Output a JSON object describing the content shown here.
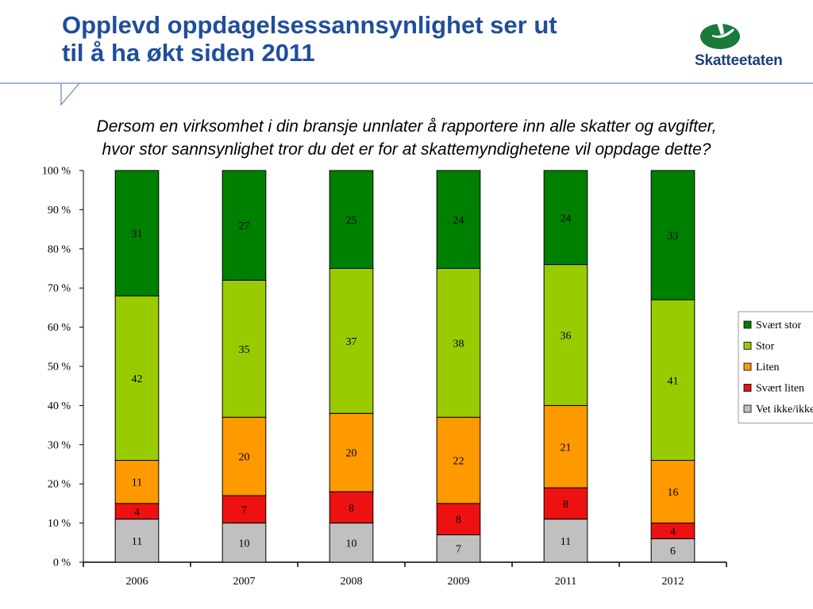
{
  "slide": {
    "title_line1": "Opplevd oppdagelsessannsynlighet ser ut",
    "title_line2": "til å ha økt siden 2011",
    "question_line1": "Dersom en virksomhet i din bransje unnlater å rapportere inn alle skatter og avgifter,",
    "question_line2": "hvor stor sannsynlighet tror du det er for at skattemyndighetene vil oppdage dette?",
    "logo_text": "Skatteetaten",
    "logo_color": "#1a7a3c"
  },
  "chart_data": {
    "type": "bar",
    "stacked": true,
    "percent": true,
    "categories": [
      "2006",
      "2007",
      "2008",
      "2009",
      "2011",
      "2012"
    ],
    "ylim": [
      0,
      100
    ],
    "yticks": [
      "0 %",
      "10 %",
      "20 %",
      "30 %",
      "40 %",
      "50 %",
      "60 %",
      "70 %",
      "80 %",
      "90 %",
      "100 %"
    ],
    "legend_position": "right",
    "series": [
      {
        "name": "Vet ikke/ikke svar",
        "color": "#c0c0c0",
        "values": [
          11,
          10,
          10,
          7,
          11,
          6
        ]
      },
      {
        "name": "Svært liten",
        "color": "#ee1111",
        "values": [
          4,
          7,
          8,
          8,
          8,
          4
        ]
      },
      {
        "name": "Liten",
        "color": "#ff9900",
        "values": [
          11,
          20,
          20,
          22,
          21,
          16
        ]
      },
      {
        "name": "Stor",
        "color": "#99cc00",
        "values": [
          42,
          35,
          37,
          38,
          36,
          41
        ]
      },
      {
        "name": "Svært stor",
        "color": "#008000",
        "values": [
          31,
          27,
          25,
          24,
          24,
          33
        ]
      }
    ],
    "legend_entries": [
      "Svært stor",
      "Stor",
      "Liten",
      "Svært liten",
      "Vet ikke/ikke svar"
    ]
  }
}
